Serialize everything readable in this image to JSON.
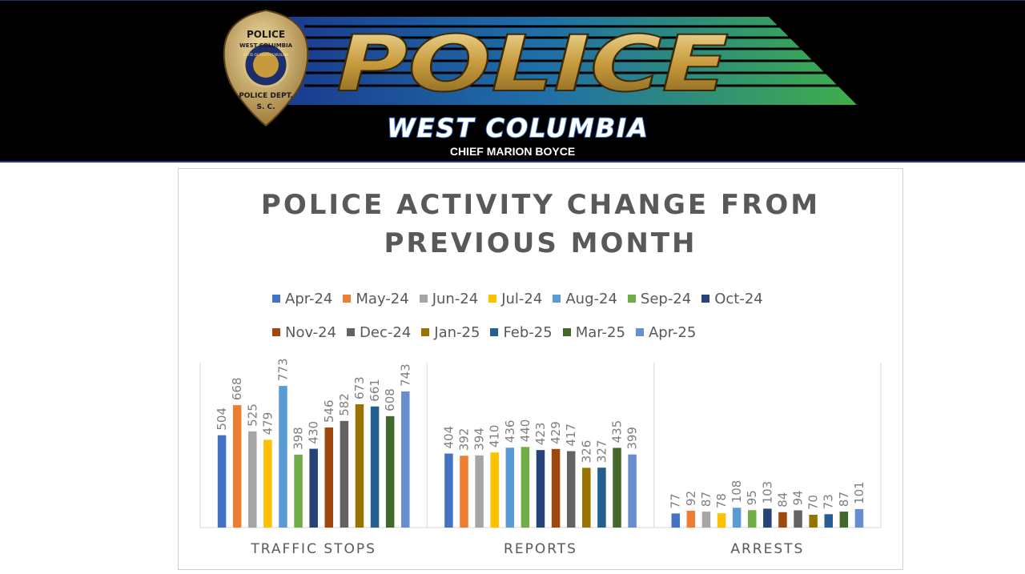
{
  "banner": {
    "badge_top_text": "POLICE",
    "badge_ring_text": "WEST COLUMBIA",
    "badge_seal_text": "STATE OF SOUTH CAROLINA",
    "badge_dept_text": "POLICE DEPT.",
    "badge_state_text": "S. C.",
    "logo_word": "POLICE",
    "city": "WEST COLUMBIA",
    "chief": "CHIEF MARION BOYCE"
  },
  "chart_data": {
    "type": "bar",
    "title": "POLICE ACTIVITY CHANGE FROM\nPREVIOUS MONTH",
    "xlabel": "",
    "ylabel": "",
    "ylim": [
      0,
      900
    ],
    "grid": false,
    "legend_position": "top",
    "categories": [
      "TRAFFIC STOPS",
      "REPORTS",
      "ARRESTS"
    ],
    "series": [
      {
        "name": "Apr-24",
        "color": "#4472C4",
        "values": [
          504,
          404,
          77
        ]
      },
      {
        "name": "May-24",
        "color": "#ED7D31",
        "values": [
          668,
          392,
          92
        ]
      },
      {
        "name": "Jun-24",
        "color": "#A5A5A5",
        "values": [
          525,
          394,
          87
        ]
      },
      {
        "name": "Jul-24",
        "color": "#FFC000",
        "values": [
          479,
          410,
          78
        ]
      },
      {
        "name": "Aug-24",
        "color": "#5B9BD5",
        "values": [
          773,
          436,
          108
        ]
      },
      {
        "name": "Sep-24",
        "color": "#70AD47",
        "values": [
          398,
          440,
          95
        ]
      },
      {
        "name": "Oct-24",
        "color": "#264478",
        "values": [
          430,
          423,
          103
        ]
      },
      {
        "name": "Nov-24",
        "color": "#9E480E",
        "values": [
          546,
          429,
          84
        ]
      },
      {
        "name": "Dec-24",
        "color": "#636363",
        "values": [
          582,
          417,
          94
        ]
      },
      {
        "name": "Jan-25",
        "color": "#997300",
        "values": [
          673,
          326,
          70
        ]
      },
      {
        "name": "Feb-25",
        "color": "#255E91",
        "values": [
          661,
          327,
          73
        ]
      },
      {
        "name": "Mar-25",
        "color": "#43682B",
        "values": [
          608,
          435,
          87
        ]
      },
      {
        "name": "Apr-25",
        "color": "#698ED0",
        "values": [
          743,
          399,
          101
        ]
      }
    ]
  }
}
